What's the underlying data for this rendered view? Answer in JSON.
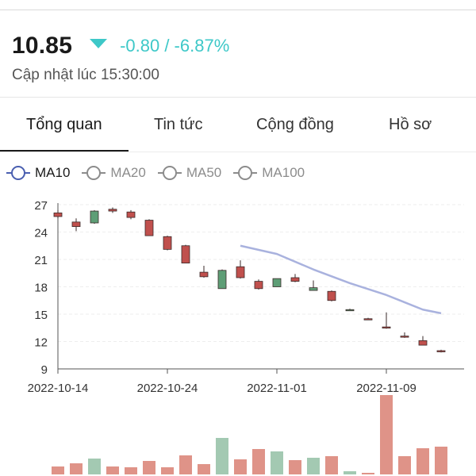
{
  "header": {
    "price": "10.85",
    "change": "-0.80 / -6.87%",
    "updated": "Cập nhật lúc 15:30:00",
    "down_color": "#3ec8c8"
  },
  "tabs": [
    {
      "label": "Tổng quan",
      "active": true
    },
    {
      "label": "Tin tức",
      "active": false
    },
    {
      "label": "Cộng đồng",
      "active": false
    },
    {
      "label": "Hồ sơ",
      "active": false
    }
  ],
  "legend": [
    {
      "label": "MA10",
      "active": true,
      "color": "#4a5fb0"
    },
    {
      "label": "MA20",
      "active": false,
      "color": "#8c8c8c"
    },
    {
      "label": "MA50",
      "active": false,
      "color": "#8c8c8c"
    },
    {
      "label": "MA100",
      "active": false,
      "color": "#8c8c8c"
    }
  ],
  "chart_data": {
    "type": "candlestick",
    "y_ticks": [
      "27",
      "24",
      "21",
      "18",
      "15",
      "12",
      "9"
    ],
    "ylim": [
      9,
      27.6
    ],
    "x_ticks": [
      {
        "label": "2022-10-14",
        "index": 0
      },
      {
        "label": "2022-10-24",
        "index": 6
      },
      {
        "label": "2022-11-01",
        "index": 12
      },
      {
        "label": "2022-11-09",
        "index": 18
      }
    ],
    "up_color": "#5e9e76",
    "down_color": "#c0504d",
    "ma_color": "#a9b2de",
    "candles": [
      {
        "o": 26.1,
        "h": 26.4,
        "l": 25.5,
        "c": 25.7
      },
      {
        "o": 25.1,
        "h": 25.5,
        "l": 24.1,
        "c": 24.6
      },
      {
        "o": 25.0,
        "h": 26.4,
        "l": 24.9,
        "c": 26.3
      },
      {
        "o": 26.5,
        "h": 26.7,
        "l": 26.1,
        "c": 26.3
      },
      {
        "o": 26.2,
        "h": 26.4,
        "l": 25.4,
        "c": 25.6
      },
      {
        "o": 25.3,
        "h": 25.4,
        "l": 23.6,
        "c": 23.6
      },
      {
        "o": 23.5,
        "h": 23.6,
        "l": 22.0,
        "c": 22.1
      },
      {
        "o": 22.5,
        "h": 22.6,
        "l": 20.6,
        "c": 20.6
      },
      {
        "o": 19.6,
        "h": 20.3,
        "l": 19.0,
        "c": 19.1
      },
      {
        "o": 17.8,
        "h": 19.9,
        "l": 17.8,
        "c": 19.8
      },
      {
        "o": 20.2,
        "h": 20.9,
        "l": 18.9,
        "c": 19.0
      },
      {
        "o": 18.6,
        "h": 18.8,
        "l": 17.7,
        "c": 17.8
      },
      {
        "o": 18.0,
        "h": 18.9,
        "l": 18.0,
        "c": 18.9
      },
      {
        "o": 19.0,
        "h": 19.4,
        "l": 18.5,
        "c": 18.6
      },
      {
        "o": 17.6,
        "h": 18.7,
        "l": 17.6,
        "c": 17.9
      },
      {
        "o": 17.5,
        "h": 17.6,
        "l": 16.4,
        "c": 16.5
      },
      {
        "o": 15.5,
        "h": 15.6,
        "l": 15.4,
        "c": 15.5
      },
      {
        "o": 14.5,
        "h": 14.6,
        "l": 14.4,
        "c": 14.4
      },
      {
        "o": 13.6,
        "h": 15.2,
        "l": 13.4,
        "c": 13.5
      },
      {
        "o": 12.6,
        "h": 13.0,
        "l": 12.4,
        "c": 12.5
      },
      {
        "o": 12.1,
        "h": 12.6,
        "l": 11.6,
        "c": 11.6
      },
      {
        "o": 11.0,
        "h": 11.1,
        "l": 10.8,
        "c": 10.9
      }
    ],
    "ma10": [
      {
        "index": 10,
        "value": 22.5
      },
      {
        "index": 12,
        "value": 21.6
      },
      {
        "index": 14,
        "value": 19.9
      },
      {
        "index": 16,
        "value": 18.4
      },
      {
        "index": 18,
        "value": 17.1
      },
      {
        "index": 20,
        "value": 15.5
      },
      {
        "index": 21,
        "value": 15.1
      }
    ],
    "volume": {
      "max": 100,
      "values": [
        10,
        14,
        20,
        10,
        9,
        17,
        9,
        24,
        13,
        46,
        19,
        32,
        29,
        18,
        21,
        23,
        4,
        2,
        100,
        23,
        33,
        35
      ]
    }
  }
}
